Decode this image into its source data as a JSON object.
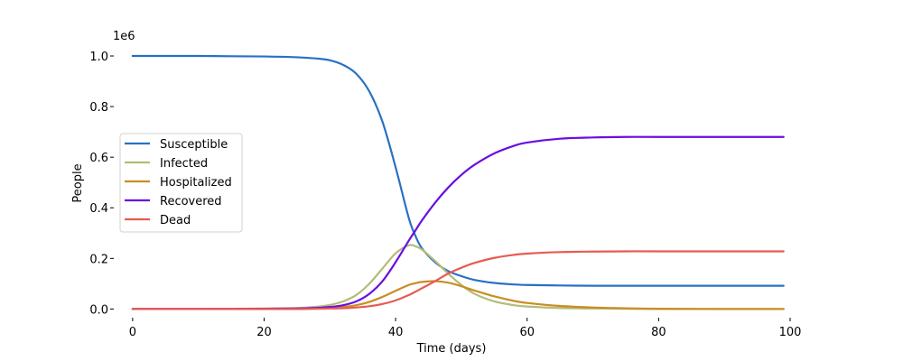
{
  "chart_data": {
    "type": "line",
    "xlabel": "Time (days)",
    "ylabel": "People",
    "y_offset_label": "1e6",
    "xlim": [
      -3,
      100
    ],
    "ylim": [
      -0.02,
      1.05
    ],
    "x_ticks": [
      0,
      20,
      40,
      60,
      80,
      100
    ],
    "x_tick_labels": [
      "0",
      "20",
      "40",
      "60",
      "80",
      "100"
    ],
    "y_ticks": [
      0.0,
      0.2,
      0.4,
      0.6,
      0.8,
      1.0
    ],
    "y_tick_labels": [
      "0.0",
      "0.2",
      "0.4",
      "0.6",
      "0.8",
      "1.0"
    ],
    "grid": false,
    "legend_position": "center-left",
    "x": [
      0,
      5,
      10,
      15,
      20,
      25,
      28,
      30,
      32,
      34,
      36,
      38,
      40,
      42,
      43,
      44,
      46,
      48,
      50,
      52,
      55,
      58,
      60,
      65,
      70,
      75,
      80,
      90,
      99
    ],
    "series": [
      {
        "name": "Susceptible",
        "color": "#2970c4",
        "values": [
          1.0,
          1.0,
          1.0,
          0.999,
          0.998,
          0.995,
          0.99,
          0.983,
          0.965,
          0.93,
          0.86,
          0.74,
          0.56,
          0.36,
          0.29,
          0.24,
          0.185,
          0.15,
          0.13,
          0.115,
          0.103,
          0.097,
          0.095,
          0.093,
          0.092,
          0.092,
          0.092,
          0.092,
          0.092
        ]
      },
      {
        "name": "Infected",
        "color": "#b5bb78",
        "values": [
          0.0,
          0.0,
          0.0,
          0.001,
          0.002,
          0.004,
          0.009,
          0.016,
          0.03,
          0.055,
          0.1,
          0.16,
          0.22,
          0.252,
          0.248,
          0.235,
          0.19,
          0.14,
          0.095,
          0.06,
          0.03,
          0.015,
          0.01,
          0.004,
          0.002,
          0.001,
          0.0,
          0.0,
          0.0
        ]
      },
      {
        "name": "Hospitalized",
        "color": "#c98d23",
        "values": [
          0.0,
          0.0,
          0.0,
          0.0,
          0.0,
          0.001,
          0.002,
          0.004,
          0.008,
          0.015,
          0.028,
          0.048,
          0.072,
          0.095,
          0.102,
          0.107,
          0.11,
          0.104,
          0.09,
          0.073,
          0.05,
          0.032,
          0.024,
          0.012,
          0.006,
          0.003,
          0.001,
          0.0,
          0.0
        ]
      },
      {
        "name": "Recovered",
        "color": "#6a0fe0",
        "values": [
          0.0,
          0.0,
          0.0,
          0.0,
          0.001,
          0.002,
          0.004,
          0.008,
          0.015,
          0.03,
          0.06,
          0.11,
          0.185,
          0.27,
          0.31,
          0.35,
          0.42,
          0.48,
          0.53,
          0.57,
          0.615,
          0.645,
          0.658,
          0.673,
          0.678,
          0.68,
          0.68,
          0.68,
          0.68
        ]
      },
      {
        "name": "Dead",
        "color": "#e85a52",
        "values": [
          0.0,
          0.0,
          0.0,
          0.0,
          0.0,
          0.0,
          0.001,
          0.002,
          0.003,
          0.006,
          0.011,
          0.02,
          0.034,
          0.055,
          0.068,
          0.082,
          0.11,
          0.14,
          0.163,
          0.182,
          0.202,
          0.214,
          0.219,
          0.225,
          0.227,
          0.228,
          0.228,
          0.228,
          0.228
        ]
      }
    ]
  }
}
